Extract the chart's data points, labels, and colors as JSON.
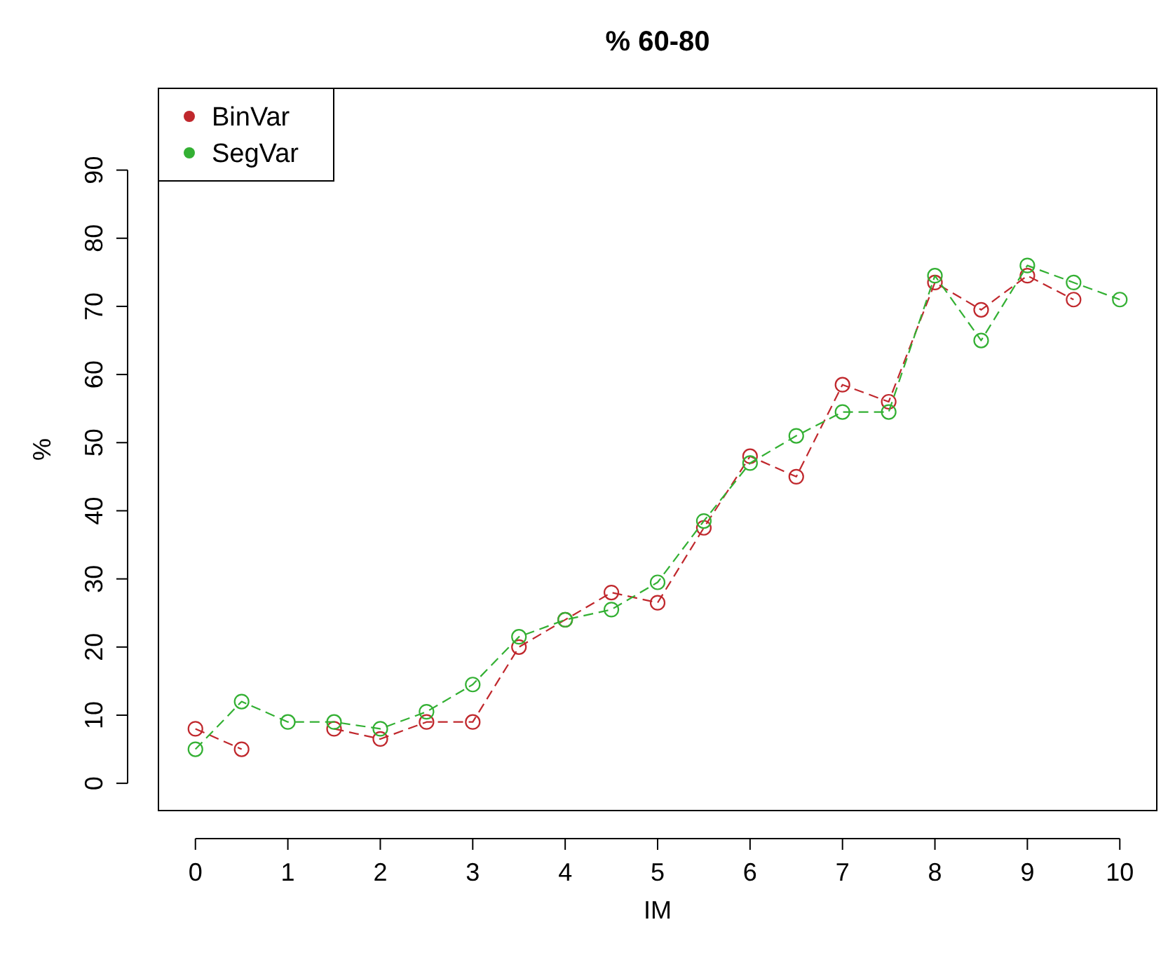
{
  "chart_data": {
    "type": "line",
    "title": "% 60-80",
    "xlabel": "IM",
    "ylabel": "%",
    "x": [
      0,
      0.5,
      1,
      1.5,
      2,
      2.5,
      3,
      3.5,
      4,
      4.5,
      5,
      5.5,
      6,
      6.5,
      7,
      7.5,
      8,
      8.5,
      9,
      9.5,
      10
    ],
    "series": [
      {
        "name": "BinVar",
        "color": "#c0282d",
        "values": [
          8,
          5,
          null,
          8,
          6.5,
          9,
          9,
          20,
          24,
          28,
          26.5,
          37.5,
          48,
          45,
          58.5,
          56,
          73.5,
          69.5,
          74.5,
          71,
          null
        ]
      },
      {
        "name": "SegVar",
        "color": "#33b033",
        "values": [
          5,
          12,
          9,
          9,
          8,
          10.5,
          14.5,
          21.5,
          24,
          25.5,
          29.5,
          38.5,
          47,
          51,
          54.5,
          54.5,
          74.5,
          65,
          76,
          73.5,
          71
        ]
      }
    ],
    "xlim": [
      -0.4,
      10.4
    ],
    "ylim": [
      -4,
      102
    ],
    "xticks": [
      0,
      1,
      2,
      3,
      4,
      5,
      6,
      7,
      8,
      9,
      10
    ],
    "yticks": [
      0,
      10,
      20,
      30,
      40,
      50,
      60,
      70,
      80,
      90
    ],
    "grid": false,
    "legend": "top left",
    "marker": "circle",
    "line_style": "dashed"
  }
}
